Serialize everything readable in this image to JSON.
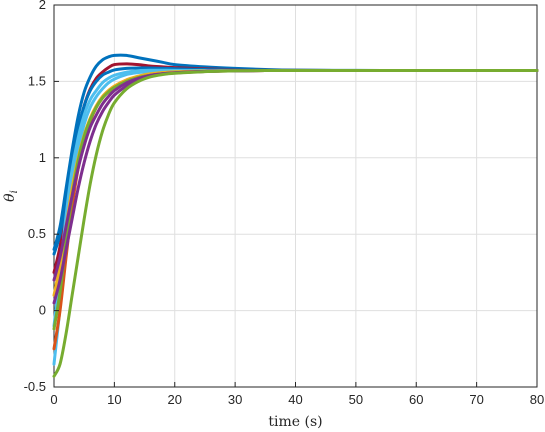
{
  "chart_data": {
    "type": "line",
    "title": "",
    "xlabel": "time (s)",
    "ylabel": "θ",
    "ylabel_subscript": "i",
    "xlim": [
      0,
      80
    ],
    "ylim": [
      -0.5,
      2
    ],
    "xticks": [
      0,
      10,
      20,
      30,
      40,
      50,
      60,
      70,
      80
    ],
    "yticks": [
      -0.5,
      0,
      0.5,
      1,
      1.5,
      2
    ],
    "xtick_labels": [
      "0",
      "10",
      "20",
      "30",
      "40",
      "50",
      "60",
      "70",
      "80"
    ],
    "ytick_labels": [
      "-0.5",
      "0",
      "0.5",
      "1",
      "1.5",
      "2"
    ],
    "grid": true,
    "legend": "none",
    "steady_state": 1.571,
    "x": [
      0,
      1,
      2,
      3,
      4,
      5,
      6,
      7,
      8,
      9,
      10,
      12,
      14,
      16,
      18,
      20,
      25,
      30,
      35,
      40,
      50,
      60,
      70,
      80
    ],
    "series": [
      {
        "color": "#0072BD",
        "values": [
          0.4,
          0.55,
          0.8,
          1.05,
          1.27,
          1.43,
          1.53,
          1.6,
          1.64,
          1.66,
          1.67,
          1.67,
          1.655,
          1.64,
          1.625,
          1.61,
          1.595,
          1.585,
          1.578,
          1.574,
          1.572,
          1.571,
          1.571,
          1.571
        ]
      },
      {
        "color": "#A2142F",
        "values": [
          0.25,
          0.42,
          0.68,
          0.95,
          1.18,
          1.34,
          1.45,
          1.52,
          1.56,
          1.59,
          1.61,
          1.615,
          1.61,
          1.6,
          1.595,
          1.59,
          1.582,
          1.576,
          1.573,
          1.572,
          1.571,
          1.571,
          1.571,
          1.571
        ]
      },
      {
        "color": "#0072BD",
        "values": [
          0.37,
          0.5,
          0.72,
          0.97,
          1.19,
          1.34,
          1.44,
          1.5,
          1.54,
          1.56,
          1.575,
          1.585,
          1.588,
          1.588,
          1.586,
          1.583,
          1.578,
          1.575,
          1.573,
          1.572,
          1.571,
          1.571,
          1.571,
          1.571
        ]
      },
      {
        "color": "#4DBEEE",
        "values": [
          -0.1,
          0.25,
          0.62,
          0.92,
          1.13,
          1.28,
          1.38,
          1.44,
          1.49,
          1.52,
          1.54,
          1.56,
          1.57,
          1.573,
          1.573,
          1.572,
          1.571,
          1.571,
          1.571,
          1.571,
          1.571,
          1.571,
          1.571,
          1.571
        ]
      },
      {
        "color": "#4DBEEE",
        "values": [
          -0.35,
          0.02,
          0.45,
          0.8,
          1.05,
          1.22,
          1.33,
          1.4,
          1.45,
          1.49,
          1.515,
          1.545,
          1.558,
          1.565,
          1.568,
          1.57,
          1.571,
          1.571,
          1.571,
          1.571,
          1.571,
          1.571,
          1.571,
          1.571
        ]
      },
      {
        "color": "#EDB120",
        "values": [
          0.1,
          0.3,
          0.55,
          0.8,
          1.0,
          1.15,
          1.26,
          1.34,
          1.4,
          1.44,
          1.47,
          1.51,
          1.535,
          1.55,
          1.558,
          1.563,
          1.568,
          1.57,
          1.571,
          1.571,
          1.571,
          1.571,
          1.571,
          1.571
        ]
      },
      {
        "color": "#D95319",
        "values": [
          -0.25,
          0.0,
          0.35,
          0.68,
          0.93,
          1.11,
          1.24,
          1.33,
          1.39,
          1.43,
          1.46,
          1.5,
          1.525,
          1.54,
          1.55,
          1.556,
          1.565,
          1.569,
          1.571,
          1.571,
          1.571,
          1.571,
          1.571,
          1.571
        ]
      },
      {
        "color": "#77AC30",
        "values": [
          -0.12,
          0.12,
          0.45,
          0.75,
          0.98,
          1.14,
          1.25,
          1.33,
          1.39,
          1.43,
          1.46,
          1.5,
          1.525,
          1.54,
          1.55,
          1.556,
          1.565,
          1.569,
          1.571,
          1.571,
          1.571,
          1.571,
          1.571,
          1.571
        ]
      },
      {
        "color": "#7E2F8E",
        "values": [
          0.2,
          0.35,
          0.55,
          0.75,
          0.93,
          1.08,
          1.2,
          1.28,
          1.35,
          1.4,
          1.44,
          1.49,
          1.52,
          1.54,
          1.55,
          1.557,
          1.566,
          1.569,
          1.571,
          1.571,
          1.571,
          1.571,
          1.571,
          1.571
        ]
      },
      {
        "color": "#7E2F8E",
        "values": [
          0.05,
          0.2,
          0.4,
          0.6,
          0.8,
          0.97,
          1.11,
          1.22,
          1.3,
          1.36,
          1.41,
          1.47,
          1.51,
          1.535,
          1.548,
          1.555,
          1.565,
          1.569,
          1.571,
          1.571,
          1.571,
          1.571,
          1.571,
          1.571
        ]
      },
      {
        "color": "#77AC30",
        "values": [
          -0.43,
          -0.35,
          -0.15,
          0.1,
          0.35,
          0.6,
          0.83,
          1.02,
          1.17,
          1.28,
          1.36,
          1.45,
          1.5,
          1.53,
          1.545,
          1.553,
          1.564,
          1.569,
          1.571,
          1.571,
          1.571,
          1.571,
          1.571,
          1.571
        ]
      }
    ]
  }
}
